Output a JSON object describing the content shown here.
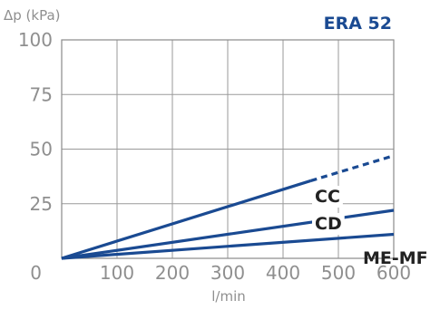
{
  "chart_data": {
    "type": "line",
    "title": "ERA 52",
    "ylabel": "Δp (kPa)",
    "xlabel": "l/min",
    "xlim": [
      0,
      600
    ],
    "ylim": [
      0,
      100
    ],
    "x_ticks": [
      "100",
      "200",
      "300",
      "400",
      "500",
      "600"
    ],
    "x_zero_label": "0",
    "y_ticks": [
      "25",
      "50",
      "75",
      "100"
    ],
    "grid": true,
    "line_color": "#1a4a92",
    "series": [
      {
        "name": "CC",
        "points": [
          [
            0,
            0
          ],
          [
            450,
            35.5
          ],
          [
            600,
            47
          ]
        ],
        "dashed_from_x": 450
      },
      {
        "name": "CD",
        "points": [
          [
            0,
            0
          ],
          [
            600,
            22
          ]
        ]
      },
      {
        "name": "ME-MF",
        "points": [
          [
            0,
            0
          ],
          [
            600,
            11
          ]
        ]
      }
    ]
  }
}
